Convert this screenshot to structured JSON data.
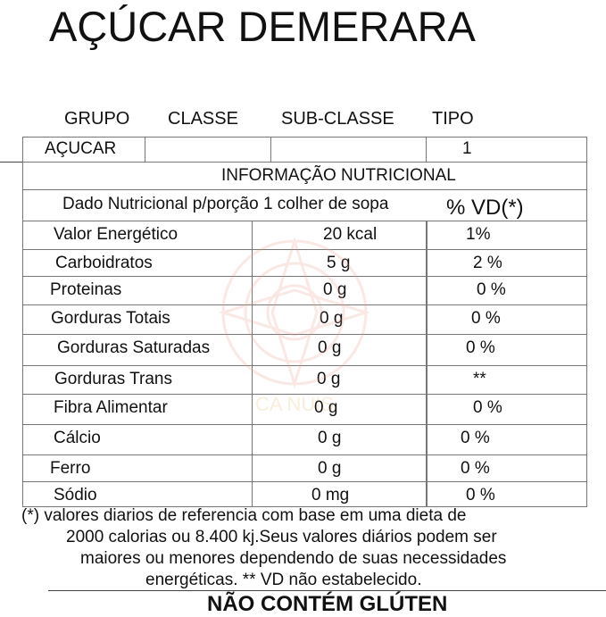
{
  "title": "AÇÚCAR DEMERARA",
  "classification": {
    "headers": [
      "GRUPO",
      "CLASSE",
      "SUB-CLASSE",
      "TIPO"
    ],
    "values": [
      "AÇUCAR",
      "",
      "",
      "1"
    ]
  },
  "nutrition": {
    "heading": "INFORMAÇÃO NUTRICIONAL",
    "portion_label": "Dado Nutricional p/porção 1 colher de sopa",
    "vd_label": "% VD(*)",
    "rows": [
      {
        "name": "Valor Energético",
        "amount": "20 kcal",
        "vd": "1%"
      },
      {
        "name": "Carboidratos",
        "amount": "5 g",
        "vd": "2 %"
      },
      {
        "name": "Proteinas",
        "amount": "0 g",
        "vd": "0 %"
      },
      {
        "name": "Gorduras Totais",
        "amount": "0 g",
        "vd": "0 %"
      },
      {
        "name": "Gorduras Saturadas",
        "amount": "0 g",
        "vd": "0 %"
      },
      {
        "name": "Gorduras Trans",
        "amount": "0 g",
        "vd": "**"
      },
      {
        "name": "Fibra Alimentar",
        "amount": "0 g",
        "vd": "0 %"
      },
      {
        "name": "Cálcio",
        "amount": "0 g",
        "vd": "0 %"
      },
      {
        "name": "Ferro",
        "amount": "0 g",
        "vd": "0 %"
      },
      {
        "name": "Sódio",
        "amount": "0 mg",
        "vd": "0 %"
      }
    ]
  },
  "footnote": [
    "(*) valores diarios de referencia com base em uma dieta de",
    "2000 calorias ou 8.400 kj.Seus valores diários podem ser",
    "maiores ou menores dependendo de suas necessidades",
    "energéticas. ** VD não estabelecido."
  ],
  "gluten_notice": "NÃO CONTÉM GLÚTEN",
  "watermark": {
    "text": "CA NUIS",
    "color": "#e89a8a"
  }
}
